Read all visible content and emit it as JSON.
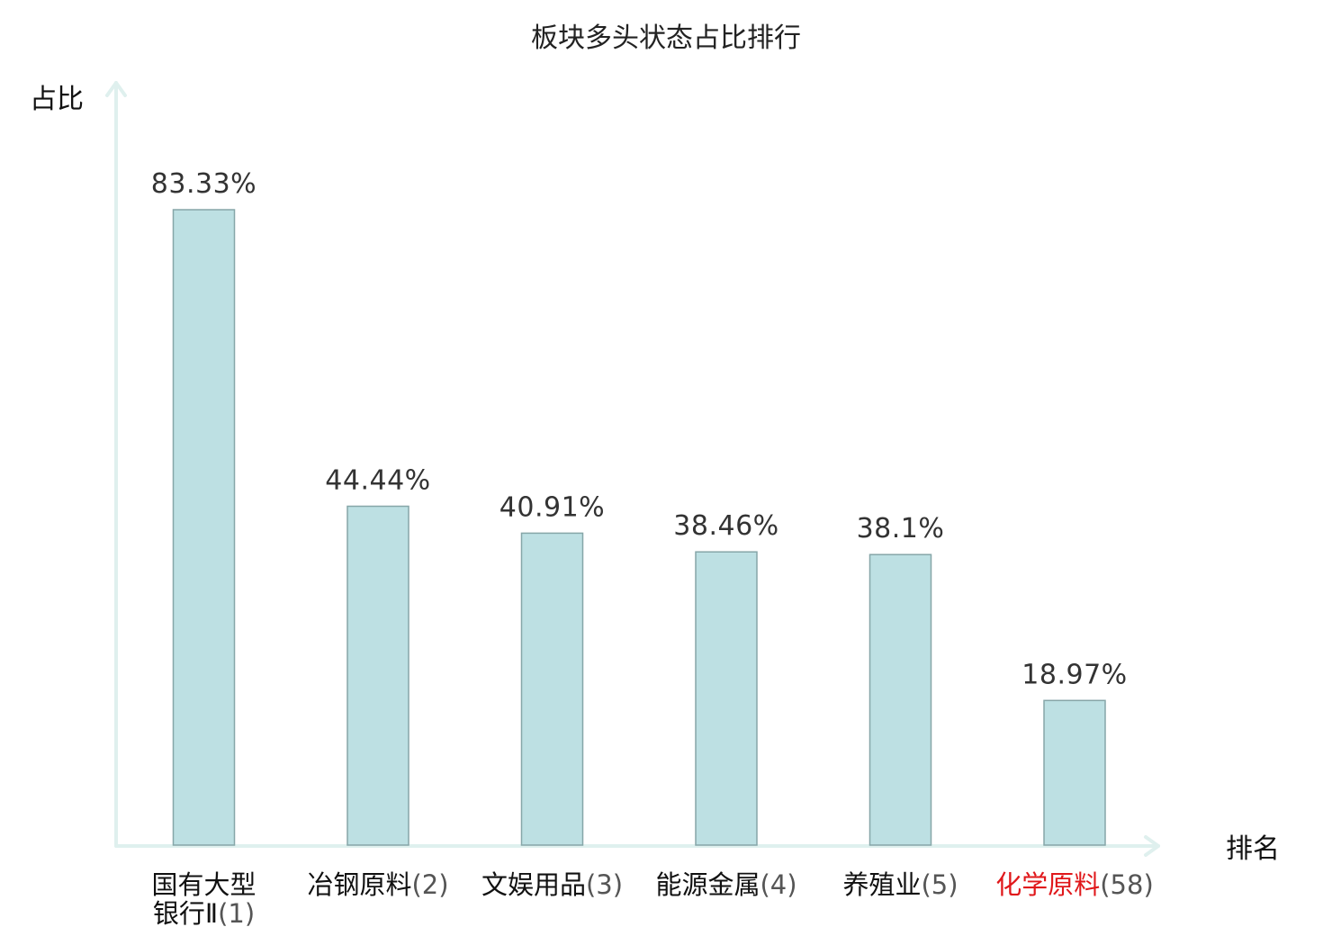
{
  "chart_data": {
    "type": "bar",
    "title": "板块多头状态占比排行",
    "ylabel": "占比",
    "xlabel": "排名",
    "ylim": [
      0,
      100
    ],
    "grid": false,
    "categories": [
      {
        "name_lines": [
          "国有大型",
          "银行Ⅱ"
        ],
        "rank": "(1)",
        "highlight": false
      },
      {
        "name_lines": [
          "冶钢原料"
        ],
        "rank": "(2)",
        "highlight": false
      },
      {
        "name_lines": [
          "文娱用品"
        ],
        "rank": "(3)",
        "highlight": false
      },
      {
        "name_lines": [
          "能源金属"
        ],
        "rank": "(4)",
        "highlight": false
      },
      {
        "name_lines": [
          "养殖业"
        ],
        "rank": "(5)",
        "highlight": false
      },
      {
        "name_lines": [
          "化学原料"
        ],
        "rank": "(58)",
        "highlight": true
      }
    ],
    "values": [
      83.33,
      44.44,
      40.91,
      38.46,
      38.1,
      18.97
    ],
    "value_labels": [
      "83.33%",
      "44.44%",
      "40.91%",
      "38.46%",
      "38.1%",
      "18.97%"
    ]
  },
  "colors": {
    "bar_fill": "#bde0e3",
    "bar_stroke": "#86a6a8",
    "axis": "#dff0ee",
    "highlight_text": "#e0181b",
    "text": "#111111",
    "value_text": "#333333"
  }
}
